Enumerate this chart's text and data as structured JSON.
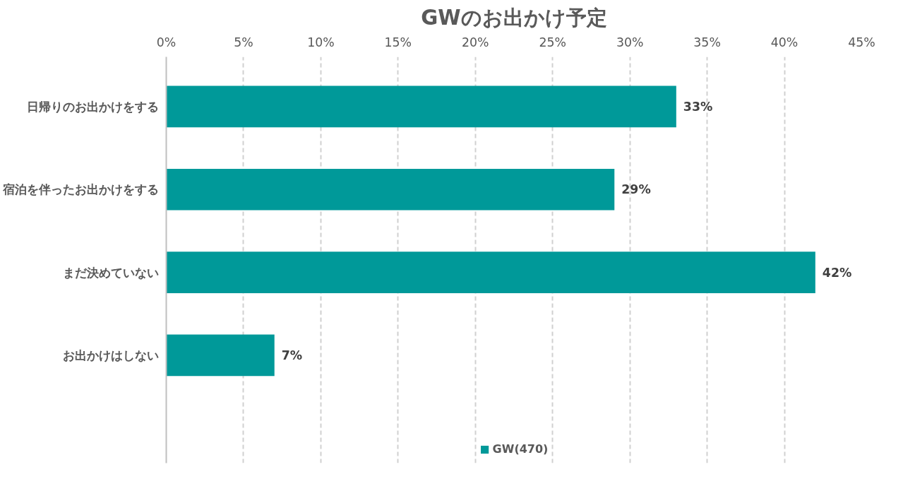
{
  "chart_data": {
    "type": "bar",
    "orientation": "horizontal",
    "title": "GWのお出かけ予定",
    "categories": [
      "日帰りのお出かけをする",
      "宿泊を伴ったお出かけをする",
      "まだ決めていない",
      "お出かけはしない"
    ],
    "series": [
      {
        "name": "GW(470)",
        "color": "#009999",
        "values": [
          33,
          29,
          42,
          7
        ],
        "value_labels": [
          "33%",
          "29%",
          "42%",
          "7%"
        ]
      }
    ],
    "xlim": [
      0,
      45
    ],
    "xticks": [
      {
        "value": 0,
        "label": "0%"
      },
      {
        "value": 5,
        "label": "5%"
      },
      {
        "value": 10,
        "label": "10%"
      },
      {
        "value": 15,
        "label": "15%"
      },
      {
        "value": 20,
        "label": "20%"
      },
      {
        "value": 25,
        "label": "25%"
      },
      {
        "value": 30,
        "label": "30%"
      },
      {
        "value": 35,
        "label": "35%"
      },
      {
        "value": 40,
        "label": "40%"
      },
      {
        "value": 45,
        "label": "45%"
      }
    ],
    "grid": "x",
    "line_style": "dashed",
    "legend": "bottom"
  }
}
